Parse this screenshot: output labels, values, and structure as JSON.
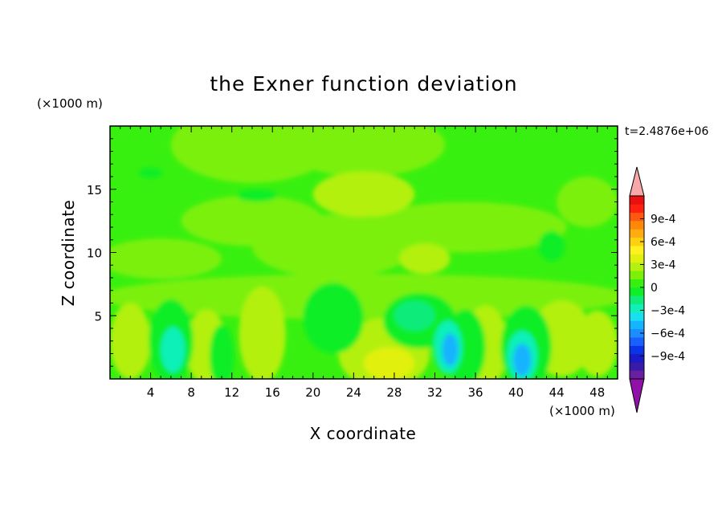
{
  "chart_data": {
    "type": "heatmap",
    "title": "the Exner function deviation",
    "xlabel": "X coordinate",
    "ylabel": "Z coordinate",
    "x_unit": "(×1000 m)",
    "y_unit": "(×1000 m)",
    "time_label": "t=2.4876e+06",
    "xlim": [
      0,
      50
    ],
    "ylim": [
      0,
      20
    ],
    "x_ticks": [
      4,
      8,
      12,
      16,
      20,
      24,
      28,
      32,
      36,
      40,
      44,
      48
    ],
    "x_tick_labels": [
      "4",
      "8",
      "12",
      "16",
      "20",
      "24",
      "28",
      "32",
      "36",
      "40",
      "44",
      "48"
    ],
    "y_ticks": [
      5,
      10,
      15
    ],
    "y_tick_labels": [
      "5",
      "10",
      "15"
    ],
    "grid": false,
    "colorbar": {
      "position": "right",
      "range": [
        -0.0012,
        0.0012
      ],
      "step": 0.0001,
      "labels": [
        {
          "value": 0.0009,
          "text": "9e-4"
        },
        {
          "value": 0.0006,
          "text": "6e-4"
        },
        {
          "value": 0.0003,
          "text": "3e-4"
        },
        {
          "value": 0.0,
          "text": "0"
        },
        {
          "value": -0.0003,
          "text": "−3e-4"
        },
        {
          "value": -0.0006,
          "text": "−6e-4"
        },
        {
          "value": -0.0009,
          "text": "−9e-4"
        }
      ],
      "colors": [
        "#6a1fa0",
        "#3a1aa8",
        "#1a1ac8",
        "#0a34e6",
        "#1860ff",
        "#1c8cff",
        "#14b4ff",
        "#18e0f0",
        "#10f0b8",
        "#10ec7a",
        "#10ee28",
        "#38f010",
        "#7cf008",
        "#b4f010",
        "#e2f010",
        "#fff020",
        "#ffd010",
        "#ffac10",
        "#ff8808",
        "#ff5810",
        "#ff2010",
        "#e81010"
      ],
      "under_color": "#9010a8",
      "over_color": "#f7a8a8"
    },
    "features": [
      {
        "kind": "anomaly",
        "x": 6,
        "z": 2.2,
        "value": -0.0004
      },
      {
        "kind": "anomaly",
        "x": 33.4,
        "z": 2.4,
        "value": -0.0006
      },
      {
        "kind": "anomaly",
        "x": 40.6,
        "z": 1.6,
        "value": -0.0006
      },
      {
        "kind": "anomaly",
        "x": 30,
        "z": 5.2,
        "value": -0.0002
      },
      {
        "kind": "anomaly",
        "x": 25,
        "z": 14.5,
        "value": 0.0001
      },
      {
        "kind": "anomaly",
        "x": 2,
        "z": 2,
        "value": 0.0002
      },
      {
        "kind": "anomaly",
        "x": 27,
        "z": 1.6,
        "value": 0.0003
      },
      {
        "kind": "anomaly",
        "x": 37.5,
        "z": 2.5,
        "value": 0.0002
      }
    ]
  }
}
